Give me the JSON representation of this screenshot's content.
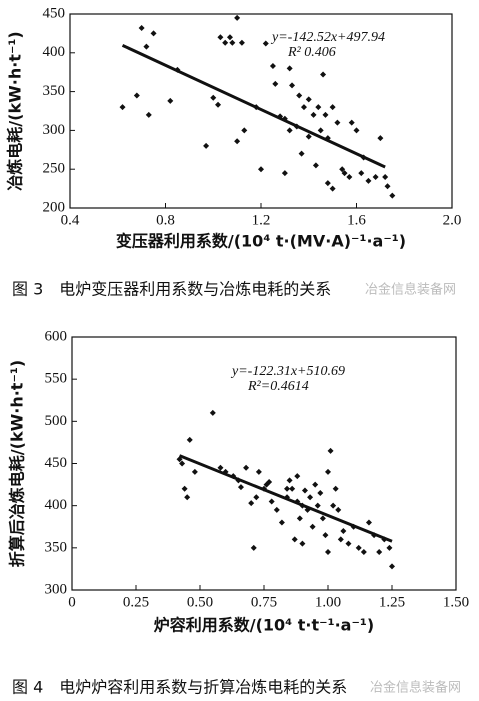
{
  "chart_data": [
    {
      "type": "scatter",
      "xlabel": "变压器利用系数/(10⁴ t·(MV·A)⁻¹·a⁻¹)",
      "ylabel": "冶炼电耗/(kW·h·t⁻¹)",
      "equation": "y=-142.52x+497.94",
      "r2_label": "R² 0.406",
      "caption": "图 3　电炉变压器利用系数与冶炼电耗的关系",
      "watermark": "冶金信息装备网",
      "color": "#111111",
      "xlim": [
        0.4,
        2.0
      ],
      "xticks": [
        0.4,
        0.8,
        1.2,
        1.6,
        {
          "value": 2,
          "label": "2.0"
        }
      ],
      "ylim": [
        200,
        450
      ],
      "yticks": [
        200,
        250,
        300,
        350,
        400,
        450
      ],
      "x": [
        0.62,
        0.68,
        0.7,
        0.72,
        0.73,
        0.75,
        0.82,
        0.85,
        0.97,
        1.0,
        1.02,
        1.03,
        1.05,
        1.07,
        1.08,
        1.1,
        1.1,
        1.12,
        1.13,
        1.18,
        1.2,
        1.22,
        1.25,
        1.28,
        1.3,
        1.3,
        1.32,
        1.33,
        1.35,
        1.36,
        1.37,
        1.38,
        1.4,
        1.4,
        1.42,
        1.43,
        1.44,
        1.45,
        1.46,
        1.47,
        1.48,
        1.5,
        1.5,
        1.52,
        1.54,
        1.55,
        1.57,
        1.58,
        1.6,
        1.62,
        1.63,
        1.65,
        1.68,
        1.7,
        1.72,
        1.73,
        1.75,
        1.48,
        1.32,
        1.26
      ],
      "values": [
        330,
        345,
        432,
        408,
        320,
        425,
        338,
        378,
        280,
        342,
        333,
        420,
        413,
        420,
        413,
        445,
        286,
        413,
        300,
        330,
        250,
        412,
        383,
        318,
        315,
        245,
        380,
        358,
        305,
        345,
        270,
        330,
        292,
        340,
        320,
        255,
        330,
        300,
        372,
        320,
        232,
        330,
        225,
        310,
        250,
        245,
        240,
        310,
        300,
        245,
        265,
        235,
        240,
        290,
        240,
        228,
        216,
        290,
        300,
        360
      ],
      "trendline": {
        "x": [
          0.62,
          1.72
        ],
        "values": [
          409.6,
          252.8
        ]
      }
    },
    {
      "type": "scatter",
      "xlabel": "炉容利用系数/(10⁴ t·t⁻¹·a⁻¹)",
      "ylabel": "折算后冶炼电耗/(kW·h·t⁻¹)",
      "equation": "y=-122.31x+510.69",
      "r2_label": "R²=0.4614",
      "caption": "图 4　电炉炉容利用系数与折算冶炼电耗的关系",
      "watermark": "冶金信息装备网",
      "color": "#111111",
      "xlim": [
        0,
        1.5
      ],
      "xticks": [
        0,
        0.25,
        {
          "value": 0.5,
          "label": "0.50"
        },
        0.75,
        {
          "value": 1,
          "label": "1.00"
        },
        1.25,
        {
          "value": 1.5,
          "label": "1.50"
        }
      ],
      "ylim": [
        300,
        600
      ],
      "yticks": [
        300,
        350,
        400,
        450,
        500,
        550,
        600
      ],
      "x": [
        0.42,
        0.43,
        0.44,
        0.45,
        0.46,
        0.48,
        0.55,
        0.58,
        0.6,
        0.63,
        0.65,
        0.66,
        0.68,
        0.7,
        0.71,
        0.72,
        0.73,
        0.75,
        0.76,
        0.77,
        0.78,
        0.8,
        0.82,
        0.84,
        0.85,
        0.86,
        0.87,
        0.88,
        0.88,
        0.89,
        0.9,
        0.9,
        0.91,
        0.92,
        0.93,
        0.94,
        0.95,
        0.96,
        0.97,
        0.98,
        0.99,
        1.0,
        1.0,
        1.01,
        1.02,
        1.03,
        1.04,
        1.05,
        1.06,
        1.08,
        1.1,
        1.12,
        1.14,
        1.16,
        1.18,
        1.2,
        1.22,
        1.24,
        1.25,
        0.84
      ],
      "values": [
        455,
        450,
        420,
        410,
        478,
        440,
        510,
        445,
        440,
        435,
        430,
        422,
        445,
        403,
        350,
        410,
        440,
        420,
        425,
        428,
        405,
        395,
        380,
        410,
        430,
        420,
        360,
        435,
        405,
        385,
        400,
        355,
        418,
        395,
        410,
        375,
        425,
        400,
        415,
        385,
        365,
        440,
        345,
        465,
        400,
        420,
        395,
        360,
        370,
        355,
        375,
        350,
        345,
        380,
        365,
        345,
        360,
        350,
        328,
        420
      ],
      "trendline": {
        "x": [
          0.42,
          1.25
        ],
        "values": [
          459.3,
          357.8
        ]
      }
    }
  ]
}
